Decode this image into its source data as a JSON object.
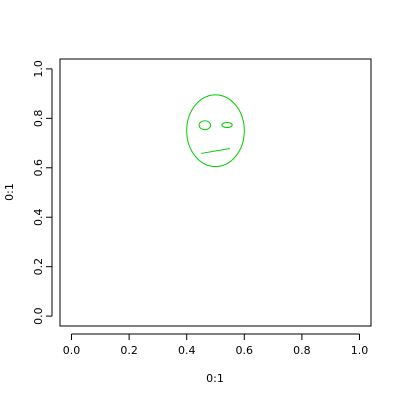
{
  "chart_data": {
    "type": "scatter",
    "title": "",
    "xlabel": "0:1",
    "ylabel": "0:1",
    "xlim": [
      -0.04,
      1.04
    ],
    "ylim": [
      -0.04,
      1.04
    ],
    "x_ticks": [
      0.0,
      0.2,
      0.4,
      0.6,
      0.8,
      1.0
    ],
    "y_ticks": [
      0.0,
      0.2,
      0.4,
      0.6,
      0.8,
      1.0
    ],
    "x_tick_labels": [
      "0.0",
      "0.2",
      "0.4",
      "0.6",
      "0.8",
      "1.0"
    ],
    "y_tick_labels": [
      "0.0",
      "0.2",
      "0.4",
      "0.6",
      "0.8",
      "1.0"
    ],
    "grid": false,
    "series": [
      {
        "color": "#00cc00",
        "shapes": [
          {
            "kind": "ellipse",
            "cx": 0.5,
            "cy": 0.75,
            "rx": 0.1,
            "ry": 0.145
          },
          {
            "kind": "ellipse",
            "cx": 0.463,
            "cy": 0.772,
            "rx": 0.02,
            "ry": 0.018
          },
          {
            "kind": "ellipse",
            "cx": 0.54,
            "cy": 0.773,
            "rx": 0.018,
            "ry": 0.01
          },
          {
            "kind": "segment",
            "x1": 0.45,
            "y1": 0.658,
            "x2": 0.55,
            "y2": 0.678
          }
        ]
      }
    ]
  }
}
